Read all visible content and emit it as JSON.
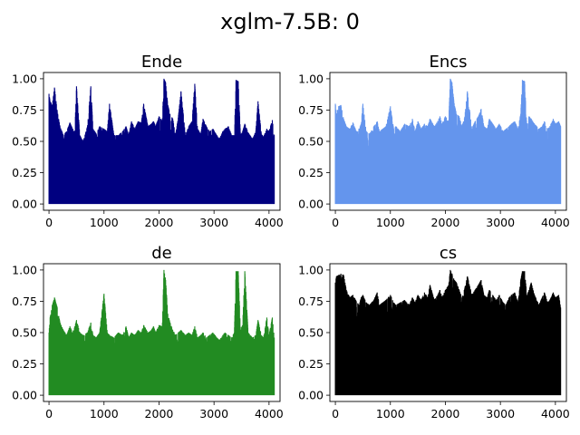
{
  "figure": {
    "title": "xglm-7.5B: 0"
  },
  "chart_data": [
    {
      "type": "line",
      "title": "Ende",
      "color": "#000080",
      "xlim": [
        -100,
        4200
      ],
      "ylim": [
        -0.05,
        1.05
      ],
      "x_ticks": [
        0,
        1000,
        2000,
        3000,
        4000
      ],
      "y_ticks": [
        0.0,
        0.25,
        0.5,
        0.75,
        1.0
      ],
      "y_tick_labels": [
        "0.00",
        "0.25",
        "0.50",
        "0.75",
        "1.00"
      ],
      "x_range": [
        0,
        4095
      ],
      "y_min": 0.0,
      "envelope_x": [
        0,
        20,
        60,
        100,
        150,
        200,
        260,
        320,
        380,
        430,
        470,
        500,
        560,
        620,
        700,
        760,
        800,
        860,
        920,
        1000,
        1060,
        1100,
        1180,
        1260,
        1340,
        1400,
        1450,
        1500,
        1560,
        1620,
        1680,
        1720,
        1800,
        1860,
        1900,
        1940,
        2000,
        2060,
        2090,
        2120,
        2160,
        2200,
        2250,
        2300,
        2350,
        2400,
        2480,
        2540,
        2600,
        2650,
        2700,
        2760,
        2800,
        2860,
        2920,
        2980,
        3050,
        3100,
        3160,
        3200,
        3260,
        3320,
        3370,
        3400,
        3440,
        3480,
        3520,
        3560,
        3620,
        3700,
        3760,
        3800,
        3860,
        3900,
        3960,
        4000,
        4060,
        4095
      ],
      "envelope_y": [
        0.88,
        0.82,
        0.79,
        0.93,
        0.74,
        0.62,
        0.55,
        0.58,
        0.65,
        0.6,
        0.58,
        0.94,
        0.55,
        0.5,
        0.62,
        0.94,
        0.6,
        0.56,
        0.62,
        0.6,
        0.58,
        0.8,
        0.55,
        0.55,
        0.58,
        0.62,
        0.55,
        0.66,
        0.6,
        0.66,
        0.65,
        0.8,
        0.62,
        0.64,
        0.66,
        0.62,
        0.7,
        0.66,
        1.0,
        0.97,
        0.79,
        0.72,
        0.68,
        0.55,
        0.69,
        0.9,
        0.55,
        0.62,
        0.66,
        0.96,
        0.6,
        0.56,
        0.68,
        0.62,
        0.58,
        0.6,
        0.55,
        0.52,
        0.58,
        0.6,
        0.62,
        0.55,
        0.55,
        0.99,
        0.98,
        0.55,
        0.58,
        0.64,
        0.57,
        0.52,
        0.58,
        0.82,
        0.56,
        0.54,
        0.6,
        0.58,
        0.67,
        0.55
      ]
    },
    {
      "type": "line",
      "title": "Encs",
      "color": "#6495ED",
      "xlim": [
        -100,
        4200
      ],
      "ylim": [
        -0.05,
        1.05
      ],
      "x_ticks": [
        0,
        1000,
        2000,
        3000,
        4000
      ],
      "y_ticks": [
        0.0,
        0.25,
        0.5,
        0.75,
        1.0
      ],
      "y_tick_labels": [
        "0.00",
        "0.25",
        "0.50",
        "0.75",
        "1.00"
      ],
      "x_range": [
        0,
        4095
      ],
      "y_min": 0.0,
      "envelope_x": [
        0,
        20,
        60,
        100,
        150,
        200,
        260,
        320,
        380,
        430,
        470,
        500,
        560,
        620,
        700,
        760,
        800,
        860,
        920,
        1000,
        1060,
        1100,
        1180,
        1260,
        1340,
        1400,
        1450,
        1500,
        1560,
        1620,
        1680,
        1720,
        1800,
        1860,
        1900,
        1940,
        2000,
        2060,
        2090,
        2120,
        2160,
        2200,
        2250,
        2300,
        2350,
        2400,
        2480,
        2540,
        2600,
        2650,
        2700,
        2760,
        2800,
        2860,
        2920,
        2980,
        3050,
        3100,
        3160,
        3200,
        3260,
        3320,
        3370,
        3400,
        3440,
        3480,
        3520,
        3560,
        3620,
        3700,
        3760,
        3800,
        3860,
        3900,
        3960,
        4000,
        4060,
        4095
      ],
      "envelope_y": [
        0.8,
        0.72,
        0.78,
        0.79,
        0.68,
        0.62,
        0.6,
        0.65,
        0.58,
        0.6,
        0.64,
        0.8,
        0.58,
        0.56,
        0.62,
        0.66,
        0.58,
        0.6,
        0.62,
        0.78,
        0.6,
        0.62,
        0.58,
        0.64,
        0.62,
        0.68,
        0.58,
        0.66,
        0.6,
        0.64,
        0.62,
        0.68,
        0.62,
        0.66,
        0.7,
        0.64,
        0.7,
        0.66,
        1.0,
        0.97,
        0.8,
        0.72,
        0.7,
        0.62,
        0.69,
        0.9,
        0.6,
        0.66,
        0.7,
        0.76,
        0.62,
        0.6,
        0.68,
        0.64,
        0.6,
        0.64,
        0.58,
        0.6,
        0.62,
        0.64,
        0.66,
        0.6,
        0.72,
        0.99,
        0.98,
        0.62,
        0.7,
        0.68,
        0.64,
        0.6,
        0.62,
        0.66,
        0.6,
        0.62,
        0.68,
        0.64,
        0.66,
        0.62
      ]
    },
    {
      "type": "line",
      "title": "de",
      "color": "#228B22",
      "xlim": [
        -100,
        4200
      ],
      "ylim": [
        -0.05,
        1.05
      ],
      "x_ticks": [
        0,
        1000,
        2000,
        3000,
        4000
      ],
      "y_ticks": [
        0.0,
        0.25,
        0.5,
        0.75,
        1.0
      ],
      "y_tick_labels": [
        "0.00",
        "0.25",
        "0.50",
        "0.75",
        "1.00"
      ],
      "x_range": [
        0,
        4095
      ],
      "y_min": 0.0,
      "envelope_x": [
        0,
        20,
        60,
        100,
        150,
        200,
        260,
        320,
        380,
        430,
        470,
        500,
        560,
        620,
        700,
        760,
        800,
        860,
        920,
        1000,
        1060,
        1100,
        1180,
        1260,
        1340,
        1400,
        1450,
        1500,
        1560,
        1620,
        1680,
        1720,
        1800,
        1860,
        1900,
        1940,
        2000,
        2060,
        2090,
        2120,
        2160,
        2200,
        2250,
        2300,
        2350,
        2400,
        2480,
        2540,
        2600,
        2650,
        2700,
        2760,
        2800,
        2860,
        2920,
        2980,
        3050,
        3100,
        3160,
        3200,
        3260,
        3320,
        3370,
        3400,
        3440,
        3480,
        3520,
        3560,
        3620,
        3700,
        3760,
        3800,
        3860,
        3900,
        3960,
        4000,
        4060,
        4095
      ],
      "envelope_y": [
        0.5,
        0.62,
        0.72,
        0.78,
        0.7,
        0.58,
        0.52,
        0.48,
        0.55,
        0.5,
        0.55,
        0.6,
        0.5,
        0.48,
        0.5,
        0.58,
        0.48,
        0.46,
        0.5,
        0.81,
        0.5,
        0.48,
        0.46,
        0.5,
        0.48,
        0.55,
        0.46,
        0.5,
        0.48,
        0.52,
        0.5,
        0.56,
        0.5,
        0.52,
        0.55,
        0.5,
        0.56,
        0.55,
        1.0,
        0.92,
        0.65,
        0.58,
        0.52,
        0.48,
        0.5,
        0.52,
        0.48,
        0.5,
        0.48,
        0.55,
        0.46,
        0.48,
        0.5,
        0.46,
        0.48,
        0.5,
        0.46,
        0.44,
        0.48,
        0.5,
        0.48,
        0.46,
        0.5,
        0.99,
        0.99,
        0.52,
        0.56,
        0.99,
        0.5,
        0.46,
        0.48,
        0.6,
        0.48,
        0.46,
        0.62,
        0.48,
        0.62,
        0.46
      ]
    },
    {
      "type": "line",
      "title": "cs",
      "color": "#000000",
      "xlim": [
        -100,
        4200
      ],
      "ylim": [
        -0.05,
        1.05
      ],
      "x_ticks": [
        0,
        1000,
        2000,
        3000,
        4000
      ],
      "y_ticks": [
        0.0,
        0.25,
        0.5,
        0.75,
        1.0
      ],
      "y_tick_labels": [
        "0.00",
        "0.25",
        "0.50",
        "0.75",
        "1.00"
      ],
      "x_range": [
        0,
        4095
      ],
      "y_min": 0.0,
      "envelope_x": [
        0,
        20,
        60,
        100,
        150,
        200,
        260,
        320,
        380,
        430,
        470,
        500,
        560,
        620,
        700,
        760,
        800,
        860,
        920,
        1000,
        1060,
        1100,
        1180,
        1260,
        1340,
        1400,
        1450,
        1500,
        1560,
        1620,
        1680,
        1720,
        1800,
        1860,
        1900,
        1940,
        2000,
        2060,
        2090,
        2120,
        2160,
        2200,
        2250,
        2300,
        2350,
        2400,
        2480,
        2540,
        2600,
        2650,
        2700,
        2760,
        2800,
        2860,
        2920,
        2980,
        3050,
        3100,
        3160,
        3200,
        3260,
        3320,
        3370,
        3400,
        3440,
        3480,
        3520,
        3560,
        3620,
        3700,
        3760,
        3800,
        3860,
        3900,
        3960,
        4000,
        4060,
        4095
      ],
      "envelope_y": [
        0.9,
        0.95,
        0.96,
        0.97,
        0.96,
        0.84,
        0.78,
        0.8,
        0.75,
        0.72,
        0.78,
        0.8,
        0.74,
        0.72,
        0.76,
        0.82,
        0.72,
        0.74,
        0.76,
        0.8,
        0.74,
        0.72,
        0.74,
        0.76,
        0.72,
        0.78,
        0.74,
        0.8,
        0.76,
        0.82,
        0.78,
        0.88,
        0.76,
        0.8,
        0.84,
        0.78,
        0.84,
        0.88,
        1.0,
        0.97,
        0.92,
        0.9,
        0.84,
        0.78,
        0.85,
        0.95,
        0.8,
        0.84,
        0.88,
        0.92,
        0.8,
        0.78,
        0.84,
        0.8,
        0.76,
        0.8,
        0.74,
        0.72,
        0.78,
        0.8,
        0.82,
        0.74,
        0.92,
        0.99,
        0.99,
        0.8,
        0.84,
        0.9,
        0.8,
        0.72,
        0.78,
        0.82,
        0.74,
        0.76,
        0.82,
        0.78,
        0.8,
        0.7
      ]
    }
  ]
}
